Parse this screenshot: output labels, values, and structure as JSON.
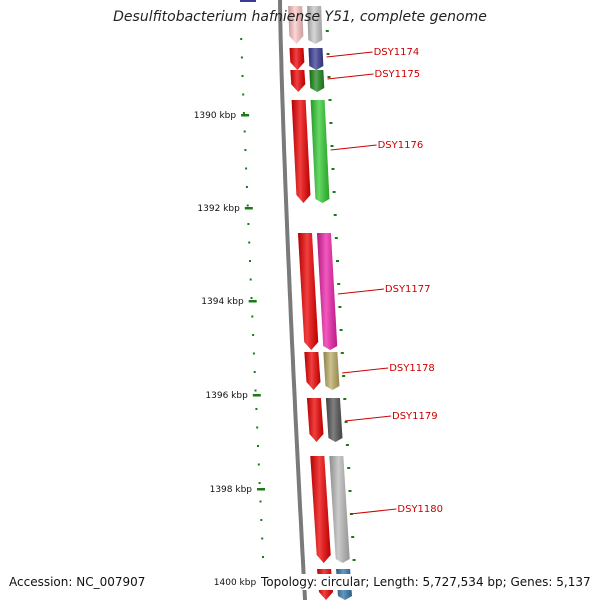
{
  "title": "Desulfitobacterium hafniense Y51, complete genome",
  "footer": {
    "accession": "Accession: NC_007907",
    "topology": "Topology: circular; Length: 5,727,534 bp; Genes: 5,137"
  },
  "scale_labels": [
    "1390 kbp",
    "1392 kbp",
    "1394 kbp",
    "1396 kbp",
    "1398 kbp",
    "1400 kbp"
  ],
  "genes": [
    {
      "label": "",
      "orf_color": "#ffc8c8",
      "strip_color": "#c9c9c9"
    },
    {
      "label": "DSY1174",
      "orf_color": "#ee0000",
      "strip_color": "#3c3c96"
    },
    {
      "label": "DSY1175",
      "orf_color": "#ee0000",
      "strip_color": "#1f8a1f"
    },
    {
      "label": "DSY1176",
      "orf_color": "#ee0000",
      "strip_color": "#33cc33"
    },
    {
      "label": "DSY1177",
      "orf_color": "#ee0000",
      "strip_color": "#ee22aa"
    },
    {
      "label": "DSY1178",
      "orf_color": "#ee0000",
      "strip_color": "#bcac66"
    },
    {
      "label": "DSY1179",
      "orf_color": "#ee0000",
      "strip_color": "#555555"
    },
    {
      "label": "DSY1180",
      "orf_color": "#ee0000",
      "strip_color": "#bbbbbb"
    },
    {
      "label": "",
      "orf_color": "#ee0000",
      "strip_color": "#3377aa"
    }
  ],
  "colors": {
    "tick": "#1a7a1a",
    "backbone": "#7a7a7a",
    "label": "#cc0000",
    "leader": "#cc0000"
  }
}
